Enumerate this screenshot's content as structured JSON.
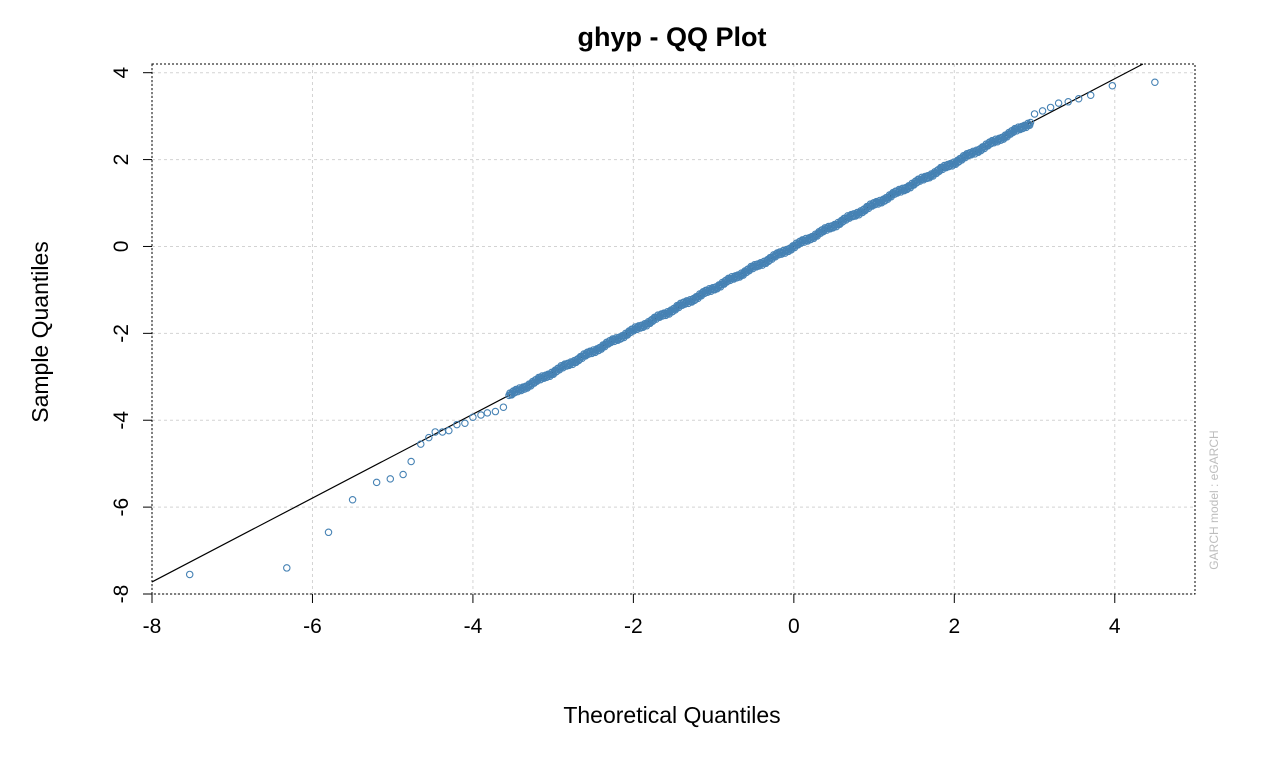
{
  "chart_data": {
    "type": "scatter",
    "title": "ghyp - QQ Plot",
    "xlabel": "Theoretical Quantiles",
    "ylabel": "Sample Quantiles",
    "side_note": "GARCH model : eGARCH",
    "xlim": [
      -8,
      5
    ],
    "ylim": [
      -8,
      4.2
    ],
    "xticks": [
      -8,
      -6,
      -4,
      -2,
      0,
      2,
      4
    ],
    "yticks": [
      -8,
      -6,
      -4,
      -2,
      0,
      2,
      4
    ],
    "grid": true,
    "point_color": "#4682b4",
    "line_color": "#000000",
    "reference_line": {
      "slope": 0.9653,
      "intercept": 0.0
    },
    "outliers": [
      [
        -7.53,
        -7.55
      ],
      [
        -6.32,
        -7.4
      ],
      [
        -5.8,
        -6.58
      ],
      [
        -5.5,
        -5.83
      ],
      [
        -5.2,
        -5.43
      ],
      [
        -5.03,
        -5.35
      ],
      [
        -4.87,
        -5.25
      ],
      [
        -4.77,
        -4.95
      ],
      [
        -4.65,
        -4.55
      ],
      [
        -4.55,
        -4.4
      ],
      [
        -4.47,
        -4.27
      ],
      [
        -4.38,
        -4.27
      ],
      [
        -4.3,
        -4.24
      ],
      [
        -4.2,
        -4.1
      ],
      [
        -4.1,
        -4.07
      ],
      [
        -4.0,
        -3.93
      ],
      [
        -3.9,
        -3.88
      ],
      [
        -3.82,
        -3.83
      ],
      [
        -3.72,
        -3.8
      ],
      [
        -3.62,
        -3.7
      ],
      [
        3.0,
        3.05
      ],
      [
        3.1,
        3.12
      ],
      [
        3.2,
        3.2
      ],
      [
        3.3,
        3.3
      ],
      [
        3.42,
        3.33
      ],
      [
        3.55,
        3.4
      ],
      [
        3.7,
        3.48
      ],
      [
        3.97,
        3.7
      ],
      [
        4.5,
        3.78
      ]
    ],
    "bulk": {
      "x_min": -3.55,
      "x_max": 2.95,
      "count": 600,
      "slope": 0.9653
    }
  }
}
